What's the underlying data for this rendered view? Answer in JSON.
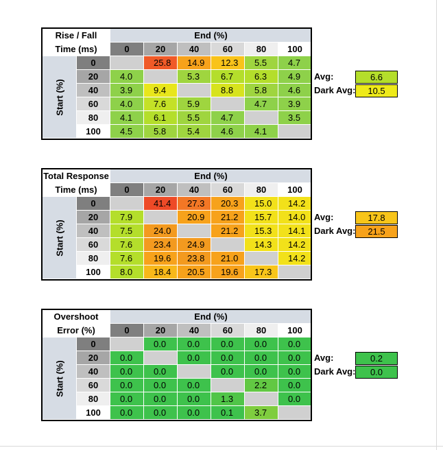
{
  "tables": [
    {
      "title_line1": "Rise / Fall",
      "title_line2": "Time (ms)",
      "end_label": "End (%)",
      "start_label": "Start (%)",
      "columns": [
        "0",
        "20",
        "40",
        "60",
        "80",
        "100"
      ],
      "rows": [
        {
          "label": "0",
          "cells": [
            {
              "v": "",
              "c": "#d0d0d0"
            },
            {
              "v": "25.8",
              "c": "#f05a28"
            },
            {
              "v": "14.9",
              "c": "#f7a21b"
            },
            {
              "v": "12.3",
              "c": "#f9c31a"
            },
            {
              "v": "5.5",
              "c": "#9fd53f"
            },
            {
              "v": "4.7",
              "c": "#8ed14a"
            }
          ]
        },
        {
          "label": "20",
          "cells": [
            {
              "v": "4.0",
              "c": "#8ed14a"
            },
            {
              "v": "",
              "c": "#d0d0d0"
            },
            {
              "v": "5.3",
              "c": "#9fd53f"
            },
            {
              "v": "6.7",
              "c": "#b4de2b"
            },
            {
              "v": "6.3",
              "c": "#b4de2b"
            },
            {
              "v": "4.9",
              "c": "#8ed14a"
            }
          ]
        },
        {
          "label": "40",
          "cells": [
            {
              "v": "3.9",
              "c": "#8ed14a"
            },
            {
              "v": "9.4",
              "c": "#e8e61b"
            },
            {
              "v": "",
              "c": "#d0d0d0"
            },
            {
              "v": "8.8",
              "c": "#d7e31e"
            },
            {
              "v": "5.8",
              "c": "#9fd53f"
            },
            {
              "v": "4.6",
              "c": "#8ed14a"
            }
          ]
        },
        {
          "label": "60",
          "cells": [
            {
              "v": "4.0",
              "c": "#8ed14a"
            },
            {
              "v": "7.6",
              "c": "#c4e127"
            },
            {
              "v": "5.9",
              "c": "#9fd53f"
            },
            {
              "v": "",
              "c": "#d0d0d0"
            },
            {
              "v": "4.7",
              "c": "#8ed14a"
            },
            {
              "v": "3.9",
              "c": "#8ed14a"
            }
          ]
        },
        {
          "label": "80",
          "cells": [
            {
              "v": "4.1",
              "c": "#8ed14a"
            },
            {
              "v": "6.1",
              "c": "#b4de2b"
            },
            {
              "v": "5.5",
              "c": "#9fd53f"
            },
            {
              "v": "4.7",
              "c": "#8ed14a"
            },
            {
              "v": "",
              "c": "#d0d0d0"
            },
            {
              "v": "3.5",
              "c": "#8ed14a"
            }
          ]
        },
        {
          "label": "100",
          "cells": [
            {
              "v": "4.5",
              "c": "#8ed14a"
            },
            {
              "v": "5.8",
              "c": "#9fd53f"
            },
            {
              "v": "5.4",
              "c": "#9fd53f"
            },
            {
              "v": "4.6",
              "c": "#8ed14a"
            },
            {
              "v": "4.1",
              "c": "#8ed14a"
            },
            {
              "v": "",
              "c": "#d0d0d0"
            }
          ]
        }
      ],
      "avg_label": "Avg:",
      "avg_value": "6.6",
      "avg_color": "#b4de2b",
      "dark_avg_label": "Dark Avg:",
      "dark_avg_value": "10.5",
      "dark_avg_color": "#eeea1a"
    },
    {
      "title_line1": "Total Response",
      "title_line2": "Time (ms)",
      "end_label": "End (%)",
      "start_label": "Start (%)",
      "columns": [
        "0",
        "20",
        "40",
        "60",
        "80",
        "100"
      ],
      "rows": [
        {
          "label": "0",
          "cells": [
            {
              "v": "",
              "c": "#d0d0d0"
            },
            {
              "v": "41.4",
              "c": "#ee4a27"
            },
            {
              "v": "27.3",
              "c": "#f37725"
            },
            {
              "v": "20.3",
              "c": "#f7a21b"
            },
            {
              "v": "15.0",
              "c": "#f2e11a"
            },
            {
              "v": "14.2",
              "c": "#f2e11a"
            }
          ]
        },
        {
          "label": "20",
          "cells": [
            {
              "v": "7.9",
              "c": "#b4de2b"
            },
            {
              "v": "",
              "c": "#d0d0d0"
            },
            {
              "v": "20.9",
              "c": "#f7a21b"
            },
            {
              "v": "21.2",
              "c": "#f7a21b"
            },
            {
              "v": "15.7",
              "c": "#f2e11a"
            },
            {
              "v": "14.0",
              "c": "#f2e11a"
            }
          ]
        },
        {
          "label": "40",
          "cells": [
            {
              "v": "7.5",
              "c": "#b4de2b"
            },
            {
              "v": "24.0",
              "c": "#f39a1f"
            },
            {
              "v": "",
              "c": "#d0d0d0"
            },
            {
              "v": "21.2",
              "c": "#f7a21b"
            },
            {
              "v": "15.3",
              "c": "#f2e11a"
            },
            {
              "v": "14.1",
              "c": "#f2e11a"
            }
          ]
        },
        {
          "label": "60",
          "cells": [
            {
              "v": "7.6",
              "c": "#b4de2b"
            },
            {
              "v": "23.4",
              "c": "#f39a1f"
            },
            {
              "v": "24.9",
              "c": "#f39a1f"
            },
            {
              "v": "",
              "c": "#d0d0d0"
            },
            {
              "v": "14.3",
              "c": "#f2e11a"
            },
            {
              "v": "14.2",
              "c": "#f2e11a"
            }
          ]
        },
        {
          "label": "80",
          "cells": [
            {
              "v": "7.6",
              "c": "#b4de2b"
            },
            {
              "v": "19.6",
              "c": "#f7a21b"
            },
            {
              "v": "23.8",
              "c": "#f39a1f"
            },
            {
              "v": "21.0",
              "c": "#f7a21b"
            },
            {
              "v": "",
              "c": "#d0d0d0"
            },
            {
              "v": "14.2",
              "c": "#f2e11a"
            }
          ]
        },
        {
          "label": "100",
          "cells": [
            {
              "v": "8.0",
              "c": "#b4de2b"
            },
            {
              "v": "18.4",
              "c": "#f8b81a"
            },
            {
              "v": "20.5",
              "c": "#f7a21b"
            },
            {
              "v": "19.6",
              "c": "#f7a21b"
            },
            {
              "v": "17.3",
              "c": "#f8c51a"
            },
            {
              "v": "",
              "c": "#d0d0d0"
            }
          ]
        }
      ],
      "avg_label": "Avg:",
      "avg_value": "17.8",
      "avg_color": "#f8c51a",
      "dark_avg_label": "Dark Avg:",
      "dark_avg_value": "21.5",
      "dark_avg_color": "#f7a21b"
    },
    {
      "title_line1": "Overshoot",
      "title_line2": "Error (%)",
      "end_label": "End (%)",
      "start_label": "Start (%)",
      "columns": [
        "0",
        "20",
        "40",
        "60",
        "80",
        "100"
      ],
      "rows": [
        {
          "label": "0",
          "cells": [
            {
              "v": "",
              "c": "#d0d0d0"
            },
            {
              "v": "0.0",
              "c": "#3ec24c"
            },
            {
              "v": "0.0",
              "c": "#3ec24c"
            },
            {
              "v": "0.0",
              "c": "#3ec24c"
            },
            {
              "v": "0.0",
              "c": "#3ec24c"
            },
            {
              "v": "0.0",
              "c": "#3ec24c"
            }
          ]
        },
        {
          "label": "20",
          "cells": [
            {
              "v": "0.0",
              "c": "#3ec24c"
            },
            {
              "v": "",
              "c": "#d0d0d0"
            },
            {
              "v": "0.0",
              "c": "#3ec24c"
            },
            {
              "v": "0.0",
              "c": "#3ec24c"
            },
            {
              "v": "0.0",
              "c": "#3ec24c"
            },
            {
              "v": "0.0",
              "c": "#3ec24c"
            }
          ]
        },
        {
          "label": "40",
          "cells": [
            {
              "v": "0.0",
              "c": "#3ec24c"
            },
            {
              "v": "0.0",
              "c": "#3ec24c"
            },
            {
              "v": "",
              "c": "#d0d0d0"
            },
            {
              "v": "0.0",
              "c": "#3ec24c"
            },
            {
              "v": "0.0",
              "c": "#3ec24c"
            },
            {
              "v": "0.0",
              "c": "#3ec24c"
            }
          ]
        },
        {
          "label": "60",
          "cells": [
            {
              "v": "0.0",
              "c": "#3ec24c"
            },
            {
              "v": "0.0",
              "c": "#3ec24c"
            },
            {
              "v": "0.0",
              "c": "#3ec24c"
            },
            {
              "v": "",
              "c": "#d0d0d0"
            },
            {
              "v": "2.2",
              "c": "#62c843"
            },
            {
              "v": "0.0",
              "c": "#3ec24c"
            }
          ]
        },
        {
          "label": "80",
          "cells": [
            {
              "v": "0.0",
              "c": "#3ec24c"
            },
            {
              "v": "0.0",
              "c": "#3ec24c"
            },
            {
              "v": "0.0",
              "c": "#3ec24c"
            },
            {
              "v": "1.3",
              "c": "#50c548"
            },
            {
              "v": "",
              "c": "#d0d0d0"
            },
            {
              "v": "0.0",
              "c": "#3ec24c"
            }
          ]
        },
        {
          "label": "100",
          "cells": [
            {
              "v": "0.0",
              "c": "#3ec24c"
            },
            {
              "v": "0.0",
              "c": "#3ec24c"
            },
            {
              "v": "0.0",
              "c": "#3ec24c"
            },
            {
              "v": "0.1",
              "c": "#3ec24c"
            },
            {
              "v": "3.7",
              "c": "#7fcd3f"
            },
            {
              "v": "",
              "c": "#d0d0d0"
            }
          ]
        }
      ],
      "avg_label": "Avg:",
      "avg_value": "0.2",
      "avg_color": "#3ec24c",
      "dark_avg_label": "Dark Avg:",
      "dark_avg_value": "0.0",
      "dark_avg_color": "#3ec24c"
    }
  ],
  "column_header_colors": [
    "#7f7f7f",
    "#a6a6a6",
    "#bfbfbf",
    "#d9d9d9",
    "#efefef",
    "#ffffff"
  ]
}
